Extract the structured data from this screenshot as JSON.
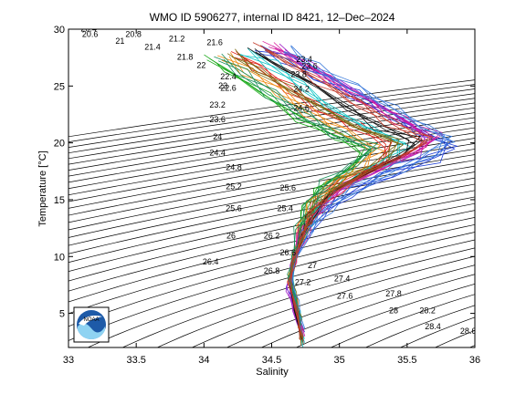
{
  "chart_data": {
    "type": "line",
    "title": "WMO ID 5906277, internal ID 8421, 12–Dec–2024",
    "xlabel": "Salinity",
    "ylabel": "Temperature [°C]",
    "xlim": [
      33,
      36
    ],
    "ylim": [
      2,
      30
    ],
    "x_ticks": [
      "33",
      "33.5",
      "34",
      "34.5",
      "35",
      "35.5",
      "36"
    ],
    "y_ticks": [
      "5",
      "10",
      "15",
      "20",
      "25",
      "30"
    ],
    "grid": false,
    "isopycnals": {
      "description_values": [
        20.6,
        20.8,
        21,
        21.2,
        21.4,
        21.6,
        21.8,
        22,
        22.2,
        22.4,
        22.6,
        22.8,
        23,
        23.2,
        23.4,
        23.6,
        23.8,
        24,
        24.2,
        24.4,
        24.6,
        24.8,
        25,
        25.2,
        25.4,
        25.6,
        25.8,
        26,
        26.2,
        26.4,
        26.6,
        26.8,
        27,
        27.2,
        27.4,
        27.6,
        27.8,
        28,
        28.2,
        28.4,
        28.6
      ],
      "labels": [
        {
          "text": "20.4",
          "s": 33.15,
          "t": 29.8
        },
        {
          "text": "20.6",
          "s": 33.16,
          "t": 29.3
        },
        {
          "text": "20.8",
          "s": 33.48,
          "t": 29.3
        },
        {
          "text": "21",
          "s": 33.38,
          "t": 28.7
        },
        {
          "text": "21.2",
          "s": 33.8,
          "t": 28.9
        },
        {
          "text": "21.4",
          "s": 33.62,
          "t": 28.2
        },
        {
          "text": "21.6",
          "s": 34.08,
          "t": 28.6
        },
        {
          "text": "21.8",
          "s": 33.86,
          "t": 27.3
        },
        {
          "text": "22",
          "s": 33.98,
          "t": 26.6
        },
        {
          "text": "22.4",
          "s": 34.18,
          "t": 25.6
        },
        {
          "text": "22.6",
          "s": 34.18,
          "t": 24.6
        },
        {
          "text": "23",
          "s": 34.14,
          "t": 24.8
        },
        {
          "text": "23.2",
          "s": 34.1,
          "t": 23.1
        },
        {
          "text": "23.6",
          "s": 34.1,
          "t": 21.8
        },
        {
          "text": "24",
          "s": 34.1,
          "t": 20.3
        },
        {
          "text": "24.4",
          "s": 34.1,
          "t": 18.9
        },
        {
          "text": "24.8",
          "s": 34.22,
          "t": 17.6
        },
        {
          "text": "25.2",
          "s": 34.22,
          "t": 15.9
        },
        {
          "text": "25.6",
          "s": 34.22,
          "t": 14.0
        },
        {
          "text": "26",
          "s": 34.2,
          "t": 11.6
        },
        {
          "text": "26.4",
          "s": 34.05,
          "t": 9.3
        },
        {
          "text": "26.2",
          "s": 34.5,
          "t": 11.6
        },
        {
          "text": "25.4",
          "s": 34.6,
          "t": 14.0
        },
        {
          "text": "25.6",
          "s": 34.62,
          "t": 15.8
        },
        {
          "text": "26.6",
          "s": 34.62,
          "t": 10.1
        },
        {
          "text": "26.8",
          "s": 34.5,
          "t": 8.5
        },
        {
          "text": "27",
          "s": 34.8,
          "t": 9.0
        },
        {
          "text": "27.2",
          "s": 34.73,
          "t": 7.5
        },
        {
          "text": "27.4",
          "s": 35.02,
          "t": 7.8
        },
        {
          "text": "27.6",
          "s": 35.04,
          "t": 6.3
        },
        {
          "text": "27.8",
          "s": 35.4,
          "t": 6.5
        },
        {
          "text": "28",
          "s": 35.4,
          "t": 5.0
        },
        {
          "text": "28.2",
          "s": 35.65,
          "t": 5.0
        },
        {
          "text": "28.4",
          "s": 35.69,
          "t": 3.6
        },
        {
          "text": "28.6",
          "s": 35.95,
          "t": 3.2
        },
        {
          "text": "23.4",
          "s": 34.74,
          "t": 27.1
        },
        {
          "text": "23.6",
          "s": 34.78,
          "t": 26.5
        },
        {
          "text": "23.8",
          "s": 34.7,
          "t": 25.8
        },
        {
          "text": "24.2",
          "s": 34.72,
          "t": 24.5
        },
        {
          "text": "24.6",
          "s": 34.72,
          "t": 22.8
        }
      ]
    },
    "series": [
      {
        "color": "#1f3fd6",
        "points": [
          [
            34.42,
            28.2
          ],
          [
            34.6,
            27.4
          ],
          [
            34.85,
            25.8
          ],
          [
            35.1,
            24.3
          ],
          [
            35.35,
            22.6
          ],
          [
            35.6,
            21.0
          ],
          [
            35.82,
            19.8
          ],
          [
            35.7,
            18.6
          ],
          [
            35.35,
            17.2
          ],
          [
            35.05,
            15.5
          ],
          [
            34.85,
            13.5
          ],
          [
            34.72,
            11.3
          ],
          [
            34.66,
            9.2
          ],
          [
            34.62,
            7.6
          ],
          [
            34.68,
            5.5
          ],
          [
            34.73,
            3.0
          ]
        ]
      },
      {
        "color": "#e0231b",
        "points": [
          [
            34.25,
            27.8
          ],
          [
            34.4,
            26.6
          ],
          [
            34.62,
            24.8
          ],
          [
            34.85,
            23.1
          ],
          [
            35.1,
            21.6
          ],
          [
            35.38,
            19.9
          ],
          [
            35.3,
            18.1
          ],
          [
            35.0,
            16.6
          ],
          [
            34.84,
            14.9
          ],
          [
            34.74,
            12.8
          ],
          [
            34.68,
            10.3
          ],
          [
            34.64,
            8.2
          ],
          [
            34.66,
            6.2
          ],
          [
            34.7,
            4.4
          ],
          [
            34.72,
            2.6
          ]
        ]
      },
      {
        "color": "#17a817",
        "points": [
          [
            34.05,
            27.4
          ],
          [
            34.2,
            26.1
          ],
          [
            34.45,
            24.2
          ],
          [
            34.7,
            22.2
          ],
          [
            34.98,
            20.5
          ],
          [
            35.2,
            19.2
          ],
          [
            35.05,
            17.5
          ],
          [
            34.86,
            16.2
          ],
          [
            34.76,
            14.3
          ],
          [
            34.7,
            12.0
          ],
          [
            34.66,
            9.8
          ],
          [
            34.64,
            7.9
          ],
          [
            34.67,
            6.0
          ],
          [
            34.71,
            3.8
          ]
        ]
      },
      {
        "color": "#a01fc8",
        "points": [
          [
            34.55,
            28.4
          ],
          [
            34.75,
            27.0
          ],
          [
            35.0,
            25.3
          ],
          [
            35.3,
            23.4
          ],
          [
            35.5,
            21.7
          ],
          [
            35.66,
            20.4
          ],
          [
            35.55,
            19.0
          ],
          [
            35.25,
            17.6
          ],
          [
            35.0,
            15.9
          ],
          [
            34.82,
            14.0
          ],
          [
            34.7,
            11.8
          ],
          [
            34.65,
            9.4
          ],
          [
            34.62,
            7.3
          ],
          [
            34.67,
            5.2
          ],
          [
            34.72,
            2.8
          ]
        ]
      },
      {
        "color": "#12c4c4",
        "points": [
          [
            34.3,
            28.0
          ],
          [
            34.5,
            26.9
          ],
          [
            34.72,
            25.0
          ],
          [
            34.95,
            23.0
          ],
          [
            35.22,
            21.2
          ],
          [
            35.48,
            20.0
          ],
          [
            35.4,
            18.6
          ],
          [
            35.1,
            17.0
          ],
          [
            34.9,
            15.2
          ],
          [
            34.77,
            13.2
          ],
          [
            34.7,
            11.0
          ],
          [
            34.65,
            8.8
          ],
          [
            34.66,
            6.8
          ],
          [
            34.7,
            4.9
          ],
          [
            34.73,
            2.4
          ]
        ]
      },
      {
        "color": "#f08a10",
        "points": [
          [
            34.15,
            27.6
          ],
          [
            34.32,
            26.3
          ],
          [
            34.55,
            24.5
          ],
          [
            34.78,
            22.7
          ],
          [
            35.02,
            21.0
          ],
          [
            35.28,
            19.5
          ],
          [
            35.16,
            17.8
          ],
          [
            34.94,
            16.4
          ],
          [
            34.8,
            14.6
          ],
          [
            34.72,
            12.4
          ],
          [
            34.67,
            10.1
          ],
          [
            34.63,
            8.0
          ],
          [
            34.68,
            6.1
          ],
          [
            34.71,
            4.0
          ]
        ]
      },
      {
        "color": "#d81b9a",
        "points": [
          [
            34.48,
            28.6
          ],
          [
            34.7,
            27.3
          ],
          [
            34.9,
            25.6
          ],
          [
            35.18,
            23.8
          ],
          [
            35.45,
            22.0
          ],
          [
            35.72,
            20.6
          ],
          [
            35.6,
            19.3
          ],
          [
            35.3,
            17.9
          ],
          [
            35.06,
            16.2
          ],
          [
            34.86,
            14.3
          ],
          [
            34.73,
            12.1
          ],
          [
            34.67,
            9.7
          ],
          [
            34.63,
            7.7
          ],
          [
            34.68,
            5.7
          ],
          [
            34.73,
            3.2
          ]
        ]
      },
      {
        "color": "#111111",
        "points": [
          [
            34.36,
            28.1
          ],
          [
            34.56,
            26.8
          ],
          [
            34.8,
            25.1
          ],
          [
            35.05,
            23.2
          ],
          [
            35.3,
            21.4
          ],
          [
            35.56,
            20.2
          ],
          [
            35.46,
            18.8
          ],
          [
            35.16,
            17.3
          ],
          [
            34.95,
            15.6
          ],
          [
            34.8,
            13.7
          ],
          [
            34.71,
            11.5
          ],
          [
            34.66,
            9.1
          ],
          [
            34.64,
            7.1
          ],
          [
            34.68,
            5.1
          ],
          [
            34.72,
            2.7
          ]
        ]
      },
      {
        "color": "#7a6a10",
        "points": [
          [
            34.2,
            27.9
          ],
          [
            34.4,
            26.5
          ],
          [
            34.64,
            24.6
          ],
          [
            34.9,
            22.9
          ],
          [
            35.14,
            21.3
          ],
          [
            35.42,
            20.1
          ],
          [
            35.34,
            18.4
          ],
          [
            35.04,
            16.8
          ],
          [
            34.86,
            15.1
          ],
          [
            34.75,
            13.0
          ],
          [
            34.69,
            10.6
          ],
          [
            34.64,
            8.5
          ],
          [
            34.67,
            6.5
          ],
          [
            34.71,
            4.6
          ],
          [
            34.72,
            2.5
          ]
        ]
      },
      {
        "color": "#3a7adb",
        "points": [
          [
            34.6,
            28.3
          ],
          [
            34.82,
            26.7
          ],
          [
            35.1,
            24.9
          ],
          [
            35.4,
            23.0
          ],
          [
            35.62,
            21.5
          ],
          [
            35.8,
            20.4
          ],
          [
            35.72,
            19.2
          ],
          [
            35.44,
            17.8
          ],
          [
            35.14,
            16.1
          ],
          [
            34.9,
            14.2
          ],
          [
            34.76,
            12.2
          ],
          [
            34.68,
            9.9
          ],
          [
            34.64,
            7.8
          ],
          [
            34.69,
            5.8
          ],
          [
            34.73,
            3.4
          ]
        ]
      },
      {
        "color": "#1b8f5a",
        "points": [
          [
            34.1,
            27.5
          ],
          [
            34.28,
            26.2
          ],
          [
            34.5,
            24.3
          ],
          [
            34.74,
            22.4
          ],
          [
            34.98,
            20.8
          ],
          [
            35.24,
            19.6
          ],
          [
            35.1,
            17.9
          ],
          [
            34.9,
            16.5
          ],
          [
            34.78,
            14.5
          ],
          [
            34.71,
            12.3
          ],
          [
            34.66,
            10.0
          ],
          [
            34.63,
            8.1
          ],
          [
            34.67,
            6.3
          ],
          [
            34.71,
            4.2
          ]
        ]
      },
      {
        "color": "#c23b2b",
        "points": [
          [
            34.4,
            28.5
          ],
          [
            34.62,
            27.1
          ],
          [
            34.86,
            25.4
          ],
          [
            35.12,
            23.5
          ],
          [
            35.38,
            21.8
          ],
          [
            35.64,
            20.3
          ],
          [
            35.52,
            19.1
          ],
          [
            35.22,
            17.5
          ],
          [
            34.98,
            15.8
          ],
          [
            34.82,
            13.9
          ],
          [
            34.72,
            11.7
          ],
          [
            34.66,
            9.3
          ],
          [
            34.63,
            7.4
          ],
          [
            34.68,
            5.4
          ],
          [
            34.72,
            2.9
          ]
        ]
      }
    ]
  },
  "logo": {
    "text": "NOAA"
  }
}
